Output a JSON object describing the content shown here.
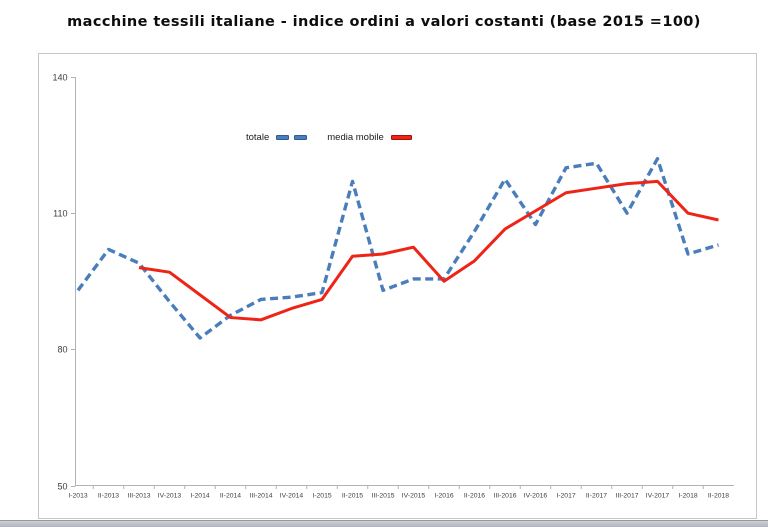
{
  "page": {
    "title": "macchine tessili italiane - indice ordini a valori costanti (base 2015 =100)"
  },
  "legend": {
    "items": [
      {
        "label": "totale"
      },
      {
        "label": "media mobile"
      }
    ]
  },
  "chart_data": {
    "type": "line",
    "title": "macchine tessili italiane - indice ordini a valori costanti (base 2015 =100)",
    "xlabel": "",
    "ylabel": "",
    "ylim": [
      50,
      140
    ],
    "y_ticks": [
      140,
      110,
      80,
      50
    ],
    "grid": false,
    "legend_position": "top-center-inside",
    "categories": [
      "I-2013",
      "II-2013",
      "III-2013",
      "IV-2013",
      "I-2014",
      "II-2014",
      "III-2014",
      "IV-2014",
      "I-2015",
      "II-2015",
      "III-2015",
      "IV-2015",
      "I-2016",
      "II-2016",
      "III-2016",
      "IV-2016",
      "I-2017",
      "II-2017",
      "III-2017",
      "IV-2017",
      "I-2018",
      "II-2018"
    ],
    "series": [
      {
        "name": "totale",
        "color": "#4a7ebb",
        "dashed": true,
        "values": [
          93,
          102,
          99,
          90.5,
          82.5,
          87.5,
          91,
          91.5,
          92.5,
          117,
          93,
          95.5,
          95.5,
          106,
          117.5,
          107.5,
          120,
          121,
          110,
          122,
          101,
          103
        ]
      },
      {
        "name": "media mobile",
        "color": "#ee2417",
        "dashed": false,
        "values": [
          null,
          null,
          98,
          97,
          92,
          87,
          86.5,
          89,
          91,
          100.5,
          101,
          102.5,
          95,
          99.5,
          106.5,
          110.5,
          114.5,
          115.5,
          116.5,
          117,
          110,
          108.5
        ]
      }
    ],
    "axis_color": "#b3b3b3",
    "label_color": "#3d3d3d"
  }
}
